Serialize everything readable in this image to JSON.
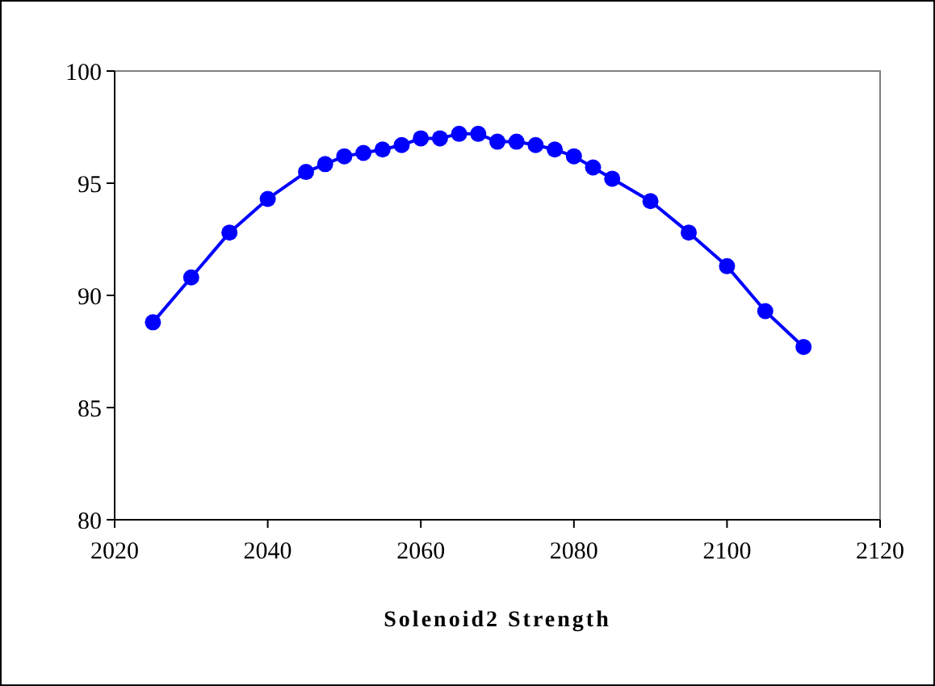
{
  "chart_data": {
    "type": "line",
    "xlabel": "Solenoid2 Strength",
    "x": [
      2025,
      2030,
      2035,
      2040,
      2045,
      2047.5,
      2050,
      2052.5,
      2055,
      2057.5,
      2060,
      2062.5,
      2065,
      2067.5,
      2070,
      2072.5,
      2075,
      2077.5,
      2080,
      2082.5,
      2085,
      2090,
      2095,
      2100,
      2105,
      2110
    ],
    "series": [
      {
        "color": "#0000ff",
        "values": [
          88.8,
          90.8,
          92.8,
          94.3,
          95.5,
          95.85,
          96.2,
          96.35,
          96.5,
          96.7,
          97.0,
          97.0,
          97.2,
          97.2,
          96.85,
          96.85,
          96.7,
          96.5,
          96.2,
          95.7,
          95.2,
          94.2,
          92.8,
          91.3,
          89.3,
          87.7
        ]
      }
    ],
    "xlim": [
      2020,
      2120
    ],
    "xticks": [
      2020,
      2040,
      2060,
      2080,
      2100,
      2120
    ],
    "ylim": [
      80,
      100
    ],
    "yticks": [
      80,
      85,
      90,
      95,
      100
    ],
    "marker": "circle",
    "line_style": "solid",
    "grid": false
  }
}
